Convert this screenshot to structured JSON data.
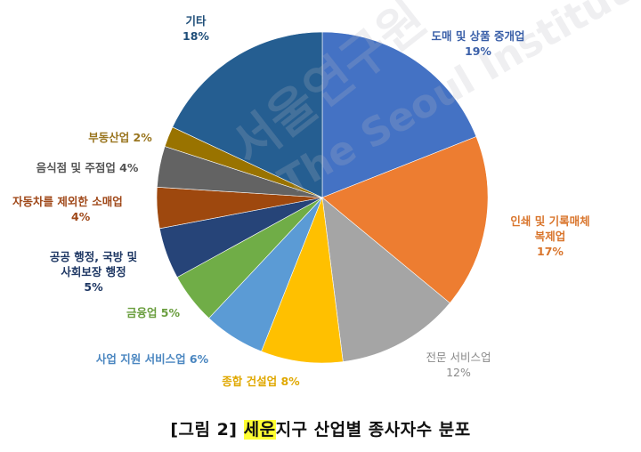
{
  "chart_data": {
    "type": "pie",
    "title": "[그림 2] 세운지구 산업별 종사자수 분포",
    "start_angle_deg": 0,
    "direction": "clockwise",
    "slices": [
      {
        "label": "도매 및 상품 중개업",
        "value": 19,
        "color": "#4472c4",
        "label_color": "#3a5fa8"
      },
      {
        "label": "인쇄 및 기록매체 복제업",
        "value": 17,
        "color": "#ed7d31",
        "label_color": "#d9752c"
      },
      {
        "label": "전문 서비스업",
        "value": 12,
        "color": "#a5a5a5",
        "label_color": "#8a8a8a"
      },
      {
        "label": "종합 건설업",
        "value": 8,
        "color": "#ffc000",
        "label_color": "#e0a800"
      },
      {
        "label": "사업 지원 서비스업",
        "value": 6,
        "color": "#5b9bd5",
        "label_color": "#4a86c0"
      },
      {
        "label": "금융업",
        "value": 5,
        "color": "#70ad47",
        "label_color": "#6a9e3e"
      },
      {
        "label": "공공 행정, 국방 및 사회보장 행정",
        "value": 5,
        "color": "#264478",
        "label_color": "#1f3864"
      },
      {
        "label": "자동차를 제외한 소매업",
        "value": 4,
        "color": "#9e480e",
        "label_color": "#a0491a"
      },
      {
        "label": "음식점 및 주점업",
        "value": 4,
        "color": "#636363",
        "label_color": "#555555"
      },
      {
        "label": "부동산업",
        "value": 2,
        "color": "#997300",
        "label_color": "#9a7620"
      },
      {
        "label": "기타",
        "value": 18,
        "color": "#255e91",
        "label_color": "#1f4e79"
      }
    ],
    "unit": "%"
  },
  "labels": {
    "wholesale": {
      "name": "도매 및 상품 중개업",
      "pct": "19%"
    },
    "printing": {
      "line1": "인쇄 및 기록매체",
      "line2": "복제업",
      "pct": "17%"
    },
    "professional": {
      "name": "전문 서비스업",
      "pct": "12%"
    },
    "construction": {
      "text": "종합 건설업 8%"
    },
    "business_support": {
      "text": "사업 지원 서비스업 6%"
    },
    "finance": {
      "text": "금융업 5%"
    },
    "public_admin": {
      "line1": "공공 행정, 국방 및",
      "line2": "사회보장 행정",
      "pct": "5%"
    },
    "retail": {
      "line1": "자동차를 제외한 소매업",
      "pct": "4%"
    },
    "food": {
      "text": "음식점 및 주점업 4%"
    },
    "real_estate": {
      "text": "부동산업 2%"
    },
    "other": {
      "name": "기타",
      "pct": "18%"
    }
  },
  "watermark": {
    "korean": "서울연구원",
    "english": "The Seoul Institute"
  },
  "caption": {
    "prefix": "[그림 2] ",
    "highlight": "세운",
    "suffix": "지구 산업별 종사자수 분포"
  }
}
